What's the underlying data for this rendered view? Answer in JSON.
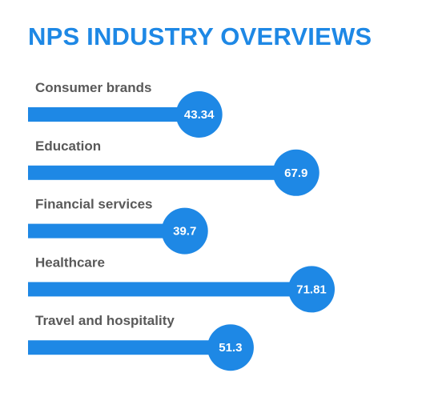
{
  "title": "NPS INDUSTRY OVERVIEWS",
  "colors": {
    "accent": "#1e88e5",
    "label_text": "#595959",
    "value_text": "#ffffff"
  },
  "chart_data": {
    "type": "bar",
    "orientation": "horizontal",
    "title": "NPS INDUSTRY OVERVIEWS",
    "categories": [
      "Consumer brands",
      "Education",
      "Financial services",
      "Healthcare",
      "Travel and hospitality"
    ],
    "values": [
      43.34,
      67.9,
      39.7,
      71.81,
      51.3
    ],
    "value_labels": [
      "43.34",
      "67.9",
      "39.7",
      "71.81",
      "51.3"
    ],
    "xlim": [
      0,
      100
    ],
    "grid": false,
    "legend": "none"
  }
}
